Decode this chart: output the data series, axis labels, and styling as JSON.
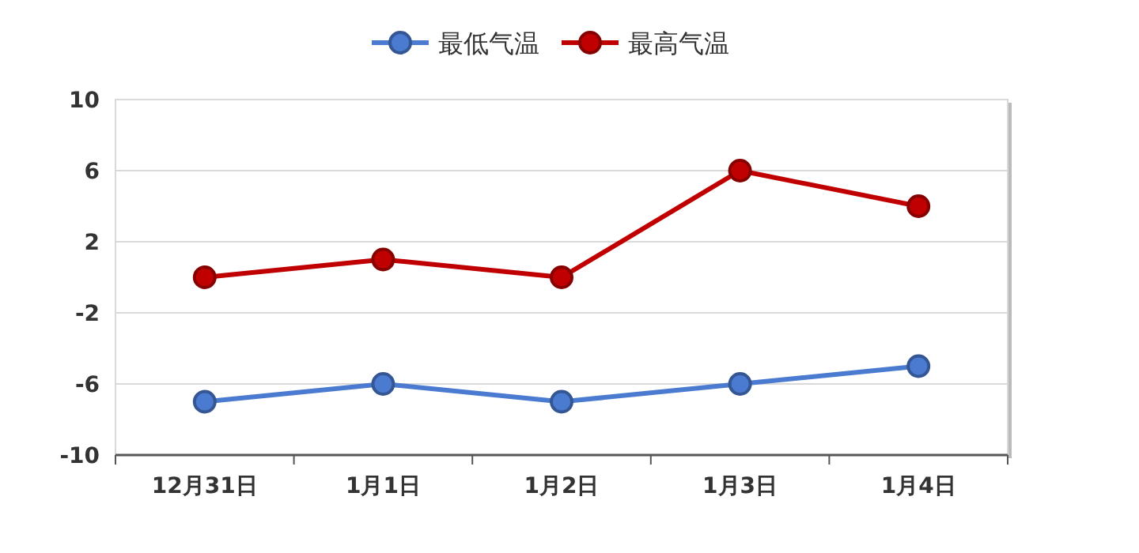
{
  "chart_data": {
    "type": "line",
    "categories": [
      "12月31日",
      "1月1日",
      "1月2日",
      "1月3日",
      "1月4日"
    ],
    "series": [
      {
        "name": "最低气温",
        "color": "#4a7bd0",
        "values": [
          -7,
          -6,
          -7,
          -6,
          -5
        ]
      },
      {
        "name": "最高气温",
        "color": "#c00000",
        "values": [
          0,
          1,
          0,
          6,
          4
        ]
      }
    ],
    "ylim": [
      -10,
      10
    ],
    "yticks": [
      -10,
      -6,
      -2,
      2,
      6,
      10
    ],
    "grid": "y",
    "legend": "top",
    "marker": "circle"
  }
}
